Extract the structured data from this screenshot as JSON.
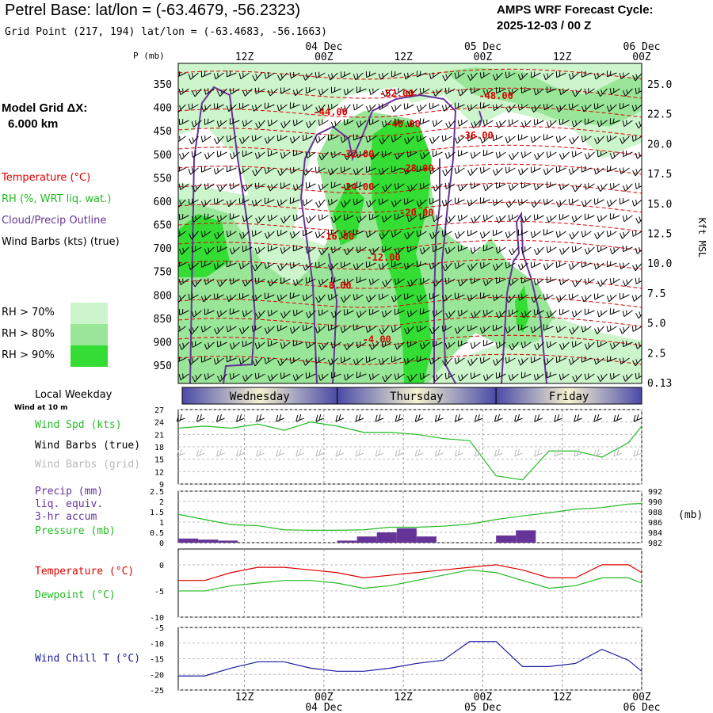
{
  "header": {
    "title": "Petrel Base:  lat/lon = (-63.4679, -56.2323)",
    "subtitle": "Grid Point (217, 194) lat/lon = (-63.4683, -56.1663)",
    "cycle_line1": "AMPS WRF Forecast Cycle:",
    "cycle_line2": "2025-12-03 / 00  Z"
  },
  "time_axis": {
    "ticks": [
      {
        "hour": 12,
        "label": "12Z",
        "date": ""
      },
      {
        "hour": 24,
        "label": "00Z",
        "date": "04 Dec"
      },
      {
        "hour": 36,
        "label": "12Z",
        "date": ""
      },
      {
        "hour": 48,
        "label": "00Z",
        "date": "05 Dec"
      },
      {
        "hour": 60,
        "label": "12Z",
        "date": ""
      },
      {
        "hour": 72,
        "label": "00Z",
        "date": "06 Dec"
      }
    ],
    "range_hours": [
      2,
      72
    ]
  },
  "legend": {
    "model_grid_label": "Model Grid ΔX:",
    "model_grid_value": "6.000 km",
    "temperature": "Temperature (°C)",
    "rh": "RH (%, WRT liq. wat.)",
    "cloud": "Cloud/Precip Outline",
    "wind_barbs": "Wind Barbs (kts) (true)",
    "rh70": "RH > 70%",
    "rh80": "RH > 80%",
    "rh90": "RH > 90%",
    "pressure_unit_label": "P (mb)",
    "height_unit_label": "Kft MSL",
    "local_weekday": "Local Weekday",
    "wind_at": "Wind at 10 m",
    "wind_spd": "Wind Spd (kts)",
    "wind_barbs_true": "Wind Barbs (true)",
    "wind_barbs_grid": "Wind Barbs (grid)",
    "precip1": "Precip (mm)",
    "precip2": "liq. equiv.",
    "precip3": "3-hr accum",
    "pressure": "Pressure (mb)",
    "mb": "(mb)",
    "temp2": "Temperature (°C)",
    "dewpoint": "Dewpoint (°C)",
    "windchill": "Wind Chill T (°C)"
  },
  "colors": {
    "temperature": "#dd0000",
    "rh70": "#ccf5cc",
    "rh80": "#99e699",
    "rh90": "#33dd33",
    "cloud": "#663399",
    "wind_spd": "#22bb22",
    "precip": "#663399",
    "windchill": "#1a1aa0",
    "weekday_dark": "#4a4aa8",
    "weekday_light": "#f5f2d0"
  },
  "chart_data": [
    {
      "type": "heatmap",
      "title": "",
      "ylabel": "P (mb)",
      "y2label": "Kft MSL",
      "pressure_ticks": [
        350,
        400,
        450,
        500,
        550,
        600,
        650,
        700,
        750,
        800,
        850,
        900,
        950
      ],
      "height_ticks": [
        "25.0",
        "22.5",
        "20.0",
        "17.5",
        "15.0",
        "12.5",
        "10.0",
        "7.5",
        "5.0",
        "2.5",
        "0.13"
      ],
      "temperature_labels": [
        {
          "hour": 35,
          "p": 375,
          "label": "-52.00"
        },
        {
          "hour": 50,
          "p": 380,
          "label": "-48.00"
        },
        {
          "hour": 25,
          "p": 415,
          "label": "-44.00"
        },
        {
          "hour": 36,
          "p": 440,
          "label": "-40.00"
        },
        {
          "hour": 47,
          "p": 465,
          "label": "-36.00"
        },
        {
          "hour": 29,
          "p": 505,
          "label": "-32.00"
        },
        {
          "hour": 38,
          "p": 535,
          "label": "-28.00"
        },
        {
          "hour": 29,
          "p": 575,
          "label": "-24.00"
        },
        {
          "hour": 38,
          "p": 630,
          "label": "-20.00"
        },
        {
          "hour": 26,
          "p": 680,
          "label": "-16.00"
        },
        {
          "hour": 33,
          "p": 725,
          "label": "-12.00"
        },
        {
          "hour": 26,
          "p": 785,
          "label": "-8.00"
        },
        {
          "hour": 32,
          "p": 900,
          "label": "-4.00"
        }
      ]
    },
    {
      "type": "line",
      "title": "",
      "ylabel": "Wind Spd (kts)",
      "y_ticks": [
        9,
        12,
        15,
        18,
        21,
        24,
        27
      ],
      "ylim": [
        9,
        27
      ],
      "x": [
        2,
        6,
        10,
        14,
        18,
        22,
        26,
        30,
        34,
        38,
        42,
        46,
        50,
        54,
        58,
        62,
        66,
        70,
        72
      ],
      "series": [
        {
          "name": "Wind Spd (kts)",
          "values": [
            22.5,
            23,
            22.5,
            23.5,
            22,
            24,
            23,
            21.5,
            21.5,
            21,
            20,
            19.5,
            11,
            10,
            17,
            17,
            15.5,
            19,
            23
          ]
        }
      ]
    },
    {
      "type": "bar",
      "title": "",
      "ylabel": "Precip (mm)",
      "y_ticks": [
        0.0,
        0.5,
        1.0,
        1.5,
        2.0,
        2.5
      ],
      "y2_ticks": [
        982,
        984,
        986,
        988,
        990,
        992
      ],
      "ylim": [
        0,
        2.5
      ],
      "precip_x": [
        3.5,
        6.5,
        9.5,
        27.5,
        30.5,
        33.5,
        36.5,
        39.5,
        51.5,
        54.5
      ],
      "precip_values": [
        0.2,
        0.15,
        0.1,
        0.1,
        0.3,
        0.5,
        0.7,
        0.3,
        0.35,
        0.6
      ],
      "pressure_x": [
        2,
        6,
        10,
        14,
        18,
        22,
        26,
        30,
        34,
        38,
        42,
        46,
        50,
        54,
        58,
        62,
        66,
        70,
        72
      ],
      "pressure_values": [
        987.5,
        986.5,
        985.5,
        985.3,
        984.5,
        984.4,
        984.4,
        984.5,
        985.0,
        985.0,
        985.2,
        985.6,
        986.5,
        987.2,
        987.8,
        988.5,
        988.8,
        989.5,
        989.6
      ]
    },
    {
      "type": "line",
      "title": "",
      "ylabel": "Temperature (°C)",
      "y_ticks": [
        0,
        -5,
        -10
      ],
      "ylim": [
        -10,
        3
      ],
      "x": [
        2,
        6,
        10,
        14,
        18,
        22,
        26,
        30,
        34,
        38,
        42,
        46,
        50,
        54,
        58,
        62,
        66,
        70,
        72
      ],
      "series": [
        {
          "name": "Temperature (°C)",
          "values": [
            -3,
            -3,
            -1.5,
            -0.5,
            -0.5,
            -1,
            -1.5,
            -2.5,
            -2,
            -1.5,
            -1,
            -0.5,
            0,
            -1,
            -2.5,
            -2.5,
            0,
            0,
            -1.5
          ]
        },
        {
          "name": "Dewpoint (°C)",
          "values": [
            -5,
            -5,
            -4,
            -3.5,
            -3,
            -3,
            -3.5,
            -4.5,
            -4,
            -3,
            -2,
            -1,
            -1.5,
            -3,
            -4.5,
            -4,
            -2.5,
            -2.5,
            -3.5
          ]
        }
      ]
    },
    {
      "type": "line",
      "title": "",
      "ylabel": "Wind Chill T (°C)",
      "y_ticks": [
        -5,
        -10,
        -15,
        -20,
        -25
      ],
      "ylim": [
        -25,
        -5
      ],
      "x": [
        2,
        6,
        10,
        14,
        18,
        22,
        26,
        30,
        34,
        38,
        42,
        46,
        50,
        54,
        58,
        62,
        66,
        70,
        72
      ],
      "series": [
        {
          "name": "Wind Chill T (°C)",
          "values": [
            -20.5,
            -20.5,
            -18,
            -16,
            -16,
            -18,
            -19,
            -19,
            -18,
            -16.5,
            -15.5,
            -9.5,
            -9.5,
            -17.5,
            -17.5,
            -16.5,
            -12,
            -15.5,
            -19
          ]
        }
      ]
    }
  ],
  "weekdays": [
    {
      "label": "Wednesday",
      "start": 2,
      "end": 26
    },
    {
      "label": "Thursday",
      "start": 26,
      "end": 50
    },
    {
      "label": "Friday",
      "start": 50,
      "end": 72
    }
  ]
}
